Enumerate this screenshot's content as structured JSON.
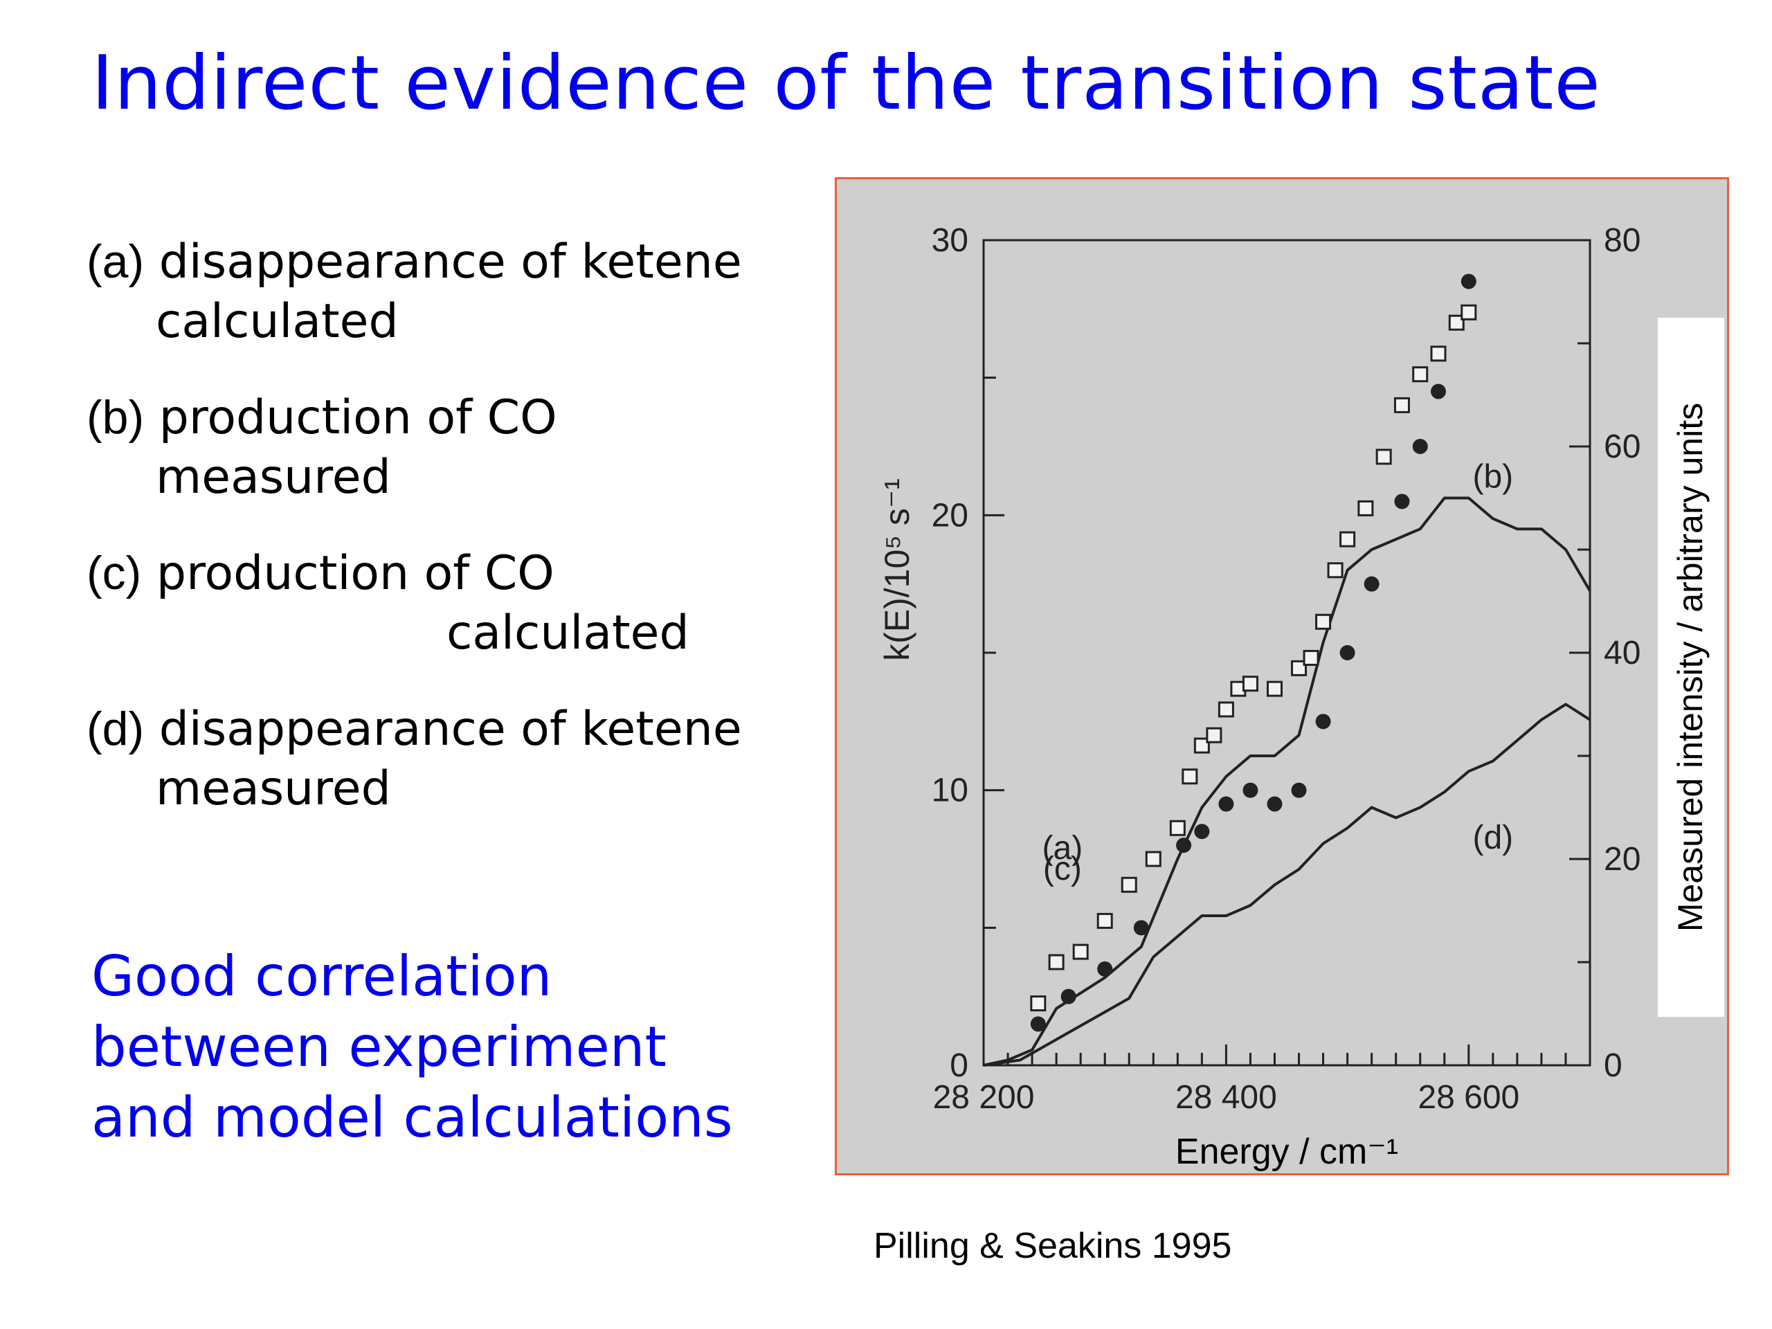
{
  "slide": {
    "title": "Indirect evidence of the transition state",
    "items": [
      {
        "tag": "(a)",
        "text": "disappearance of ketene",
        "sub": "calculated"
      },
      {
        "tag": "(b)",
        "text": "production of CO",
        "sub": "measured"
      },
      {
        "tag": "(c)",
        "text": "production of CO",
        "sub": "calculated"
      },
      {
        "tag": "(d)",
        "text": "disappearance of ketene",
        "sub": "measured"
      }
    ],
    "summary": [
      "Good correlation",
      "between experiment",
      "and model calculations"
    ],
    "citation": "Pilling & Seakins 1995"
  },
  "colors": {
    "title": "#0000ee",
    "summary": "#0000ee",
    "figure_border": "#e8603c",
    "figure_bg": "#cfcfcf",
    "ink": "#222222"
  },
  "chart_data": {
    "type": "line",
    "xlabel": "Energy / cm⁻¹",
    "ylabel_left": "k(E)/10⁵ s⁻¹",
    "ylabel_right": "Measured intensity / arbitrary units",
    "xlim": [
      28200,
      28700
    ],
    "ylim_left": [
      0,
      30
    ],
    "ylim_right": [
      0,
      80
    ],
    "x_ticks": [
      28200,
      28400,
      28600
    ],
    "x_tick_labels": [
      "28 200",
      "28 400",
      "28 600"
    ],
    "y_left_ticks": [
      0,
      10,
      20,
      30
    ],
    "y_right_ticks": [
      0,
      20,
      40,
      60,
      80
    ],
    "grid": false,
    "series": [
      {
        "name": "(a)",
        "axis": "left",
        "style": "filled-circles",
        "x": [
          28245,
          28270,
          28300,
          28330,
          28365,
          28380,
          28400,
          28420,
          28440,
          28460,
          28480,
          28500,
          28520,
          28545,
          28560,
          28575,
          28590,
          28600
        ],
        "y": [
          1.5,
          2.5,
          3.5,
          5.0,
          8.0,
          8.5,
          9.5,
          10.0,
          9.5,
          10.0,
          12.5,
          15.0,
          17.5,
          20.5,
          22.5,
          24.5,
          27.0,
          28.5
        ]
      },
      {
        "name": "(b)",
        "axis": "right",
        "style": "line",
        "x": [
          28200,
          28220,
          28240,
          28260,
          28280,
          28300,
          28330,
          28360,
          28380,
          28400,
          28420,
          28440,
          28460,
          28480,
          28500,
          28520,
          28540,
          28560,
          28580,
          28600,
          28620,
          28640,
          28660,
          28680,
          28700
        ],
        "y": [
          0,
          0.5,
          1.5,
          5.5,
          7,
          8.5,
          11.5,
          20,
          25,
          28,
          30,
          30,
          32,
          41,
          48,
          50,
          51,
          52,
          55,
          55,
          53,
          52,
          52,
          50,
          46
        ]
      },
      {
        "name": "(c)",
        "axis": "right",
        "style": "open-squares",
        "x": [
          28245,
          28260,
          28280,
          28300,
          28320,
          28340,
          28360,
          28370,
          28380,
          28390,
          28400,
          28410,
          28420,
          28440,
          28460,
          28470,
          28480,
          28490,
          28500,
          28515,
          28530,
          28545,
          28560,
          28575,
          28590,
          28600
        ],
        "y": [
          6,
          10,
          11,
          14,
          17.5,
          20,
          23,
          28,
          31,
          32,
          34.5,
          36.5,
          37,
          36.5,
          38.5,
          39.5,
          43,
          48,
          51,
          54,
          59,
          64,
          67,
          69,
          72,
          73
        ]
      },
      {
        "name": "(d)",
        "axis": "right",
        "style": "line",
        "x": [
          28200,
          28230,
          28260,
          28290,
          28320,
          28340,
          28360,
          28380,
          28400,
          28420,
          28440,
          28460,
          28480,
          28500,
          28520,
          28540,
          28560,
          28580,
          28600,
          28620,
          28640,
          28660,
          28680,
          28700
        ],
        "y": [
          0,
          0.5,
          2.5,
          4.5,
          6.5,
          10.5,
          12.5,
          14.5,
          14.5,
          15.5,
          17.5,
          19,
          21.5,
          23,
          25,
          24,
          25,
          26.5,
          28.5,
          29.5,
          31.5,
          33.5,
          35,
          33.5
        ]
      }
    ],
    "annotations": [
      {
        "text": "(a)",
        "x": 28265,
        "y": 7.5,
        "axis": "left"
      },
      {
        "text": "(b)",
        "x": 28620,
        "y": 56,
        "axis": "right"
      },
      {
        "text": "(c)",
        "x": 28265,
        "y": 18,
        "axis": "right"
      },
      {
        "text": "(d)",
        "x": 28620,
        "y": 21,
        "axis": "right"
      }
    ]
  }
}
